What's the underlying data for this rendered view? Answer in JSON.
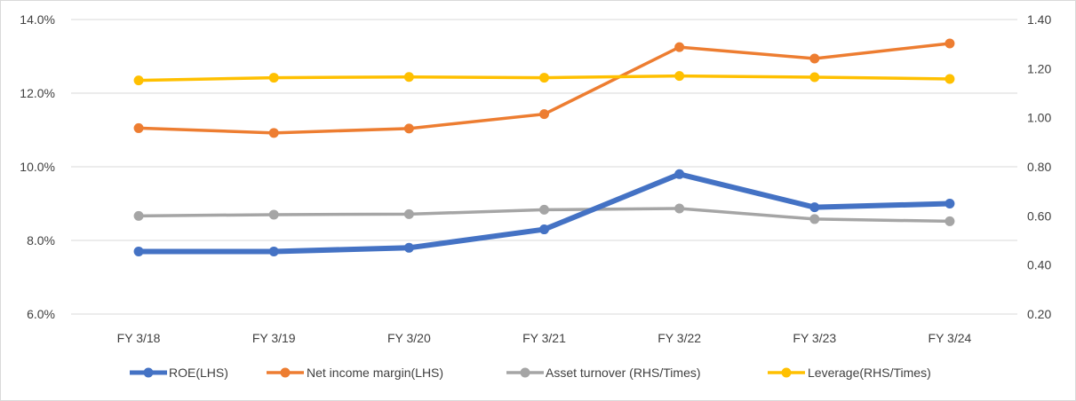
{
  "chart_data": {
    "type": "line",
    "categories": [
      "FY 3/18",
      "FY 3/19",
      "FY 3/20",
      "FY 3/21",
      "FY 3/22",
      "FY 3/23",
      "FY 3/24"
    ],
    "y_left": {
      "ylim": [
        6.0,
        14.0
      ],
      "ticks": [
        6.0,
        8.0,
        10.0,
        12.0,
        14.0
      ],
      "tick_labels": [
        "6.0%",
        "8.0%",
        "10.0%",
        "12.0%",
        "14.0%"
      ]
    },
    "y_right": {
      "ylim": [
        0.2,
        1.4
      ],
      "ticks": [
        0.2,
        0.4,
        0.6,
        0.8,
        1.0,
        1.2,
        1.4
      ],
      "tick_labels": [
        "0.20",
        "0.40",
        "0.60",
        "0.80",
        "1.00",
        "1.20",
        "1.40"
      ]
    },
    "grid": true,
    "legend_position": "bottom",
    "series": [
      {
        "name": "ROE(LHS)",
        "axis": "left",
        "color": "#4472C4",
        "values": [
          7.7,
          7.7,
          7.8,
          8.3,
          9.8,
          8.9,
          9.0
        ]
      },
      {
        "name": "Net income margin(LHS)",
        "axis": "left",
        "color": "#ED7D31",
        "values": [
          11.05,
          10.92,
          11.04,
          11.43,
          13.25,
          12.94,
          13.35
        ]
      },
      {
        "name": "Asset turnover (RHS/Times)",
        "axis": "right",
        "color": "#A5A5A5",
        "values": [
          0.6,
          0.605,
          0.607,
          0.625,
          0.63,
          0.587,
          0.578
        ]
      },
      {
        "name": "Leverage(RHS/Times)",
        "axis": "right",
        "color": "#FFC000",
        "values": [
          1.152,
          1.163,
          1.166,
          1.163,
          1.17,
          1.165,
          1.158
        ]
      }
    ]
  }
}
